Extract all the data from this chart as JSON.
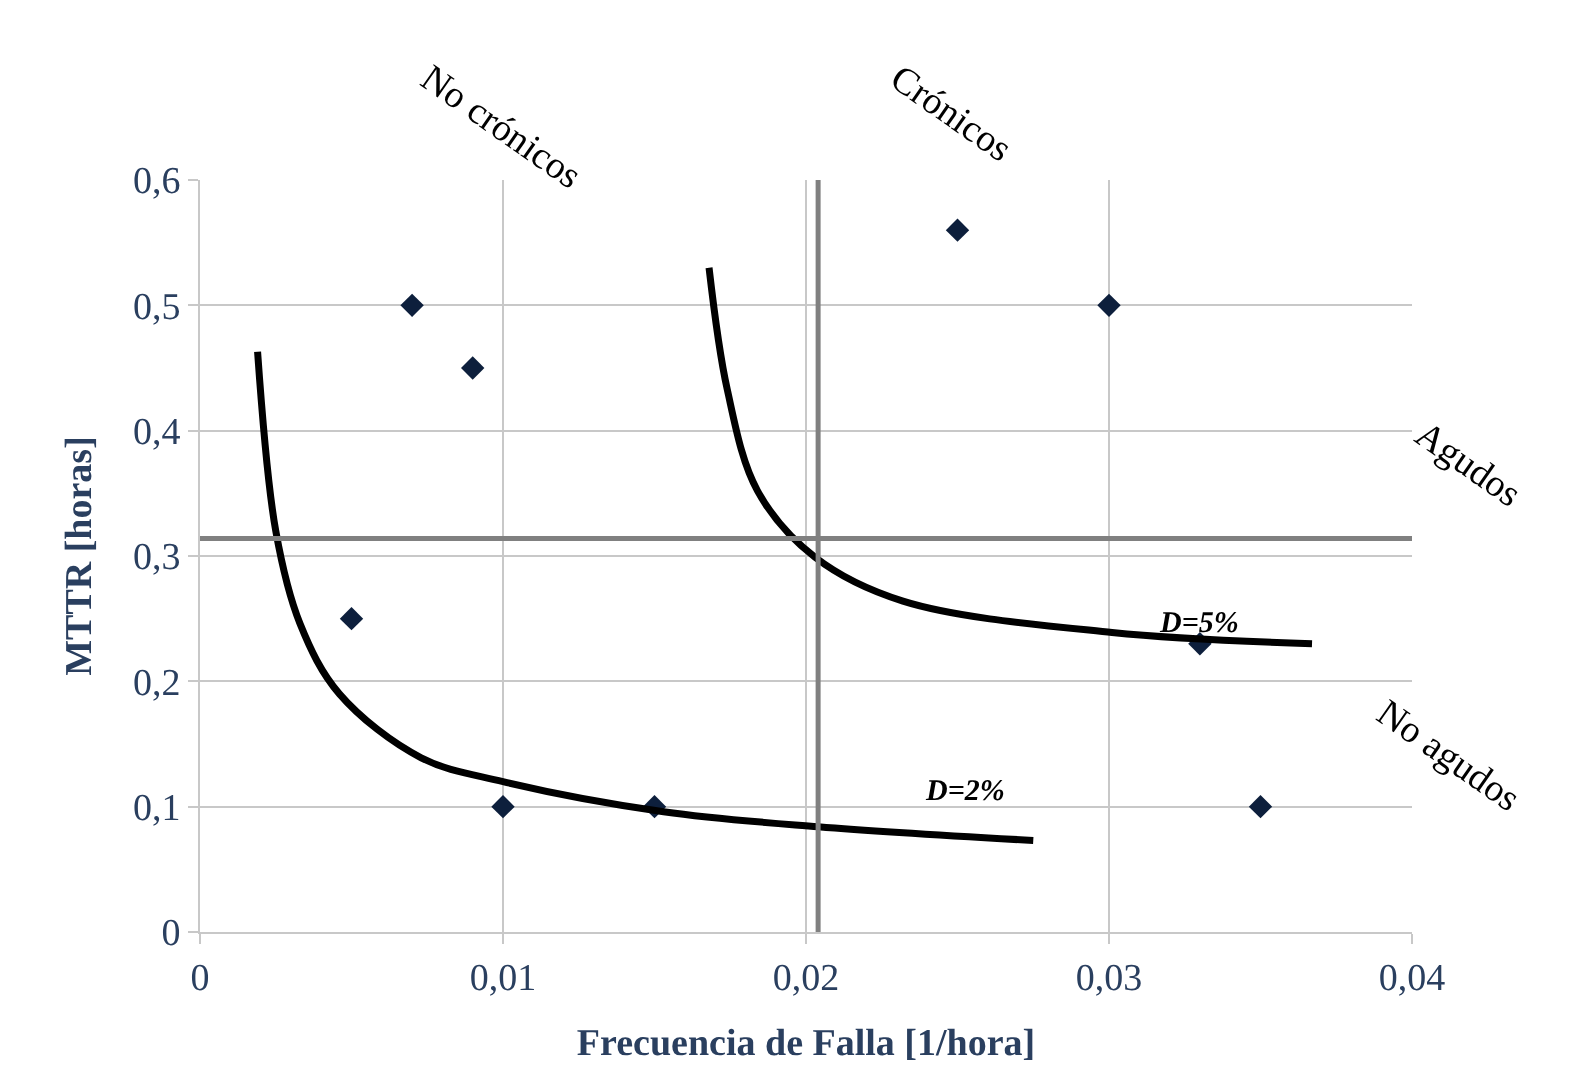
{
  "chart_data": {
    "type": "scatter",
    "xlabel": "Frecuencia de Falla [1/hora]",
    "ylabel": "MTTR [horas]",
    "series": [
      {
        "color": "#0d1f3c",
        "marker": "diamond",
        "x": [
          0.005,
          0.007,
          0.009,
          0.01,
          0.015,
          0.025,
          0.03,
          0.033,
          0.035
        ],
        "values": [
          0.25,
          0.5,
          0.45,
          0.1,
          0.1,
          0.56,
          0.5,
          0.23,
          0.1
        ]
      },
      {
        "type": "line",
        "color": "#000000",
        "marker": "none",
        "x": [
          0.0019,
          0.0025,
          0.0033,
          0.0046,
          0.0073,
          0.01,
          0.0153,
          0.0204,
          0.0275
        ],
        "values": [
          0.463,
          0.32,
          0.246,
          0.19,
          0.139,
          0.12,
          0.096,
          0.084,
          0.073
        ]
      },
      {
        "type": "line",
        "color": "#000000",
        "marker": "none",
        "x": [
          0.0168,
          0.0174,
          0.0184,
          0.0203,
          0.0232,
          0.0301,
          0.0367
        ],
        "values": [
          0.53,
          0.433,
          0.352,
          0.299,
          0.264,
          0.239,
          0.23
        ]
      }
    ],
    "annotations": [
      "No crónicos",
      "Crónicos",
      "Agudos",
      "No agudos",
      "D=5%",
      "D=2%"
    ],
    "ref_lines": [
      {
        "axis": "x",
        "value": 0.0204,
        "color": "#808080"
      },
      {
        "axis": "y",
        "value": 0.314,
        "color": "#808080"
      }
    ],
    "xlim": [
      0,
      0.04
    ],
    "ylim": [
      0,
      0.6
    ],
    "xticks": [
      0,
      {
        "value": 0.01,
        "label": "0,01"
      },
      {
        "value": 0.02,
        "label": "0,02"
      },
      {
        "value": 0.03,
        "label": "0,03"
      },
      {
        "value": 0.04,
        "label": "0,04"
      }
    ],
    "yticks": [
      0,
      {
        "value": 0.1,
        "label": "0,1"
      },
      {
        "value": 0.2,
        "label": "0,2"
      },
      {
        "value": 0.3,
        "label": "0,3"
      },
      {
        "value": 0.4,
        "label": "0,4"
      },
      {
        "value": 0.5,
        "label": "0,5"
      },
      {
        "value": 0.6,
        "label": "0,6"
      }
    ],
    "grid": true
  }
}
